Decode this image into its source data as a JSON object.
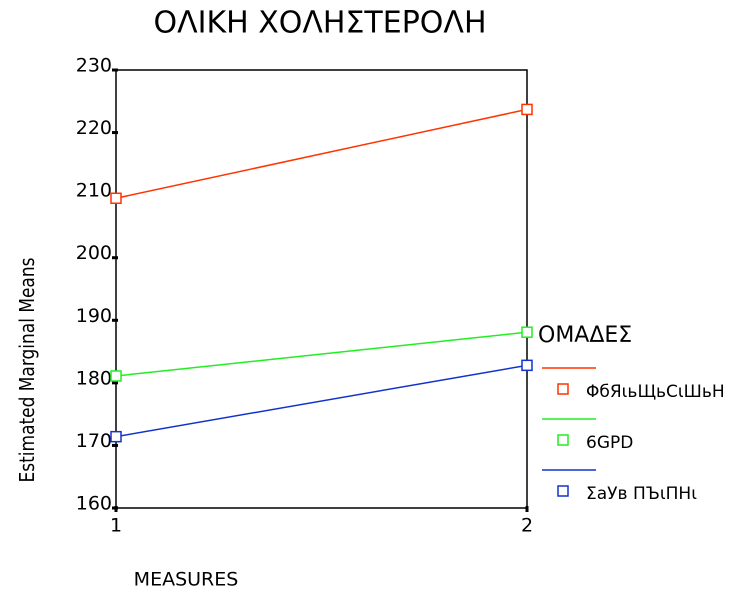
{
  "chart_data": {
    "type": "line",
    "title": "ΟΛΙΚΗ ΧΟΛΗΣΤΕΡΟΛΗ",
    "x_label": "MEASURES",
    "y_label": "Estimated Marginal Means",
    "x": [
      1,
      2
    ],
    "xlim": [
      1,
      2
    ],
    "xticks": [
      1,
      2
    ],
    "ylim": [
      160,
      230
    ],
    "yticks": [
      160,
      170,
      180,
      190,
      200,
      210,
      220,
      230
    ],
    "grid": false,
    "legend_title": "ΟΜΑΔΕΣ",
    "legend_position": "right",
    "series": [
      {
        "name": "ΦбЯιьЩьСιШьН",
        "color": "#ff3300",
        "values": [
          209.5,
          223.7
        ]
      },
      {
        "name": "6GPD",
        "color": "#22ee22",
        "values": [
          181.1,
          188.1
        ]
      },
      {
        "name": "ΣаУв ПЪιПНι",
        "color": "#1133cc",
        "values": [
          171.4,
          182.8
        ]
      }
    ]
  }
}
